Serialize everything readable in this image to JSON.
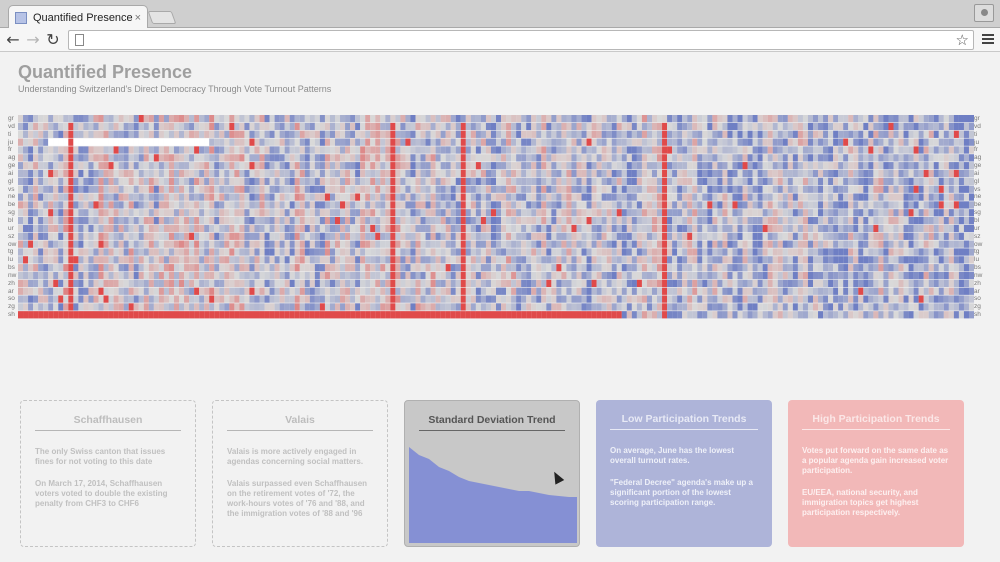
{
  "browser": {
    "tab_title": "Quantified Presence",
    "tab_close": "×",
    "back": "←",
    "forward": "→",
    "reload": "↻",
    "star": "☆",
    "url": ""
  },
  "page": {
    "title": "Quantified Presence",
    "subtitle": "Understanding Switzerland's Direct Democracy Through Vote Turnout Patterns"
  },
  "heatmap": {
    "row_labels": [
      "gr",
      "vd",
      "ti",
      "ju",
      "fr",
      "ag",
      "ge",
      "ai",
      "gl",
      "vs",
      "ne",
      "be",
      "sg",
      "bl",
      "ur",
      "sz",
      "ow",
      "tg",
      "lu",
      "bs",
      "nw",
      "zh",
      "ar",
      "so",
      "zg",
      "sh"
    ],
    "colors": {
      "low": "#6f7fc4",
      "mid": "#d9d9d9",
      "high": "#e05555",
      "strong_high": "#e04a4a"
    }
  },
  "cards": {
    "schaffhausen": {
      "title": "Schaffhausen",
      "p1": "The only Swiss canton that issues fines for not voting to this date",
      "p2": "On March 17, 2014, Schaffhausen voters voted to double the existing penalty from CHF3 to CHF6"
    },
    "valais": {
      "title": "Valais",
      "p1": "Valais is more actively engaged in agendas concerning social matters.",
      "p2": "Valais surpassed even Schaffhausen on the retirement votes of '72, the work-hours votes of '76 and '88, and the immigration votes of '88 and '96"
    },
    "std": {
      "title": "Standard Deviation Trend",
      "fill": "#8590d4"
    },
    "low": {
      "title": "Low Participation Trends",
      "p1": "On average, June has the lowest overall turnout rates.",
      "p2": "\"Federal Decree\" agenda's make up a significant portion of the lowest scoring participation range."
    },
    "high": {
      "title": "High Participation Trends",
      "p1": "Votes put forward on the same date as a popular agenda gain increased voter participation.",
      "p2": "EU/EEA, national security, and immigration topics get highest participation respectively."
    }
  }
}
